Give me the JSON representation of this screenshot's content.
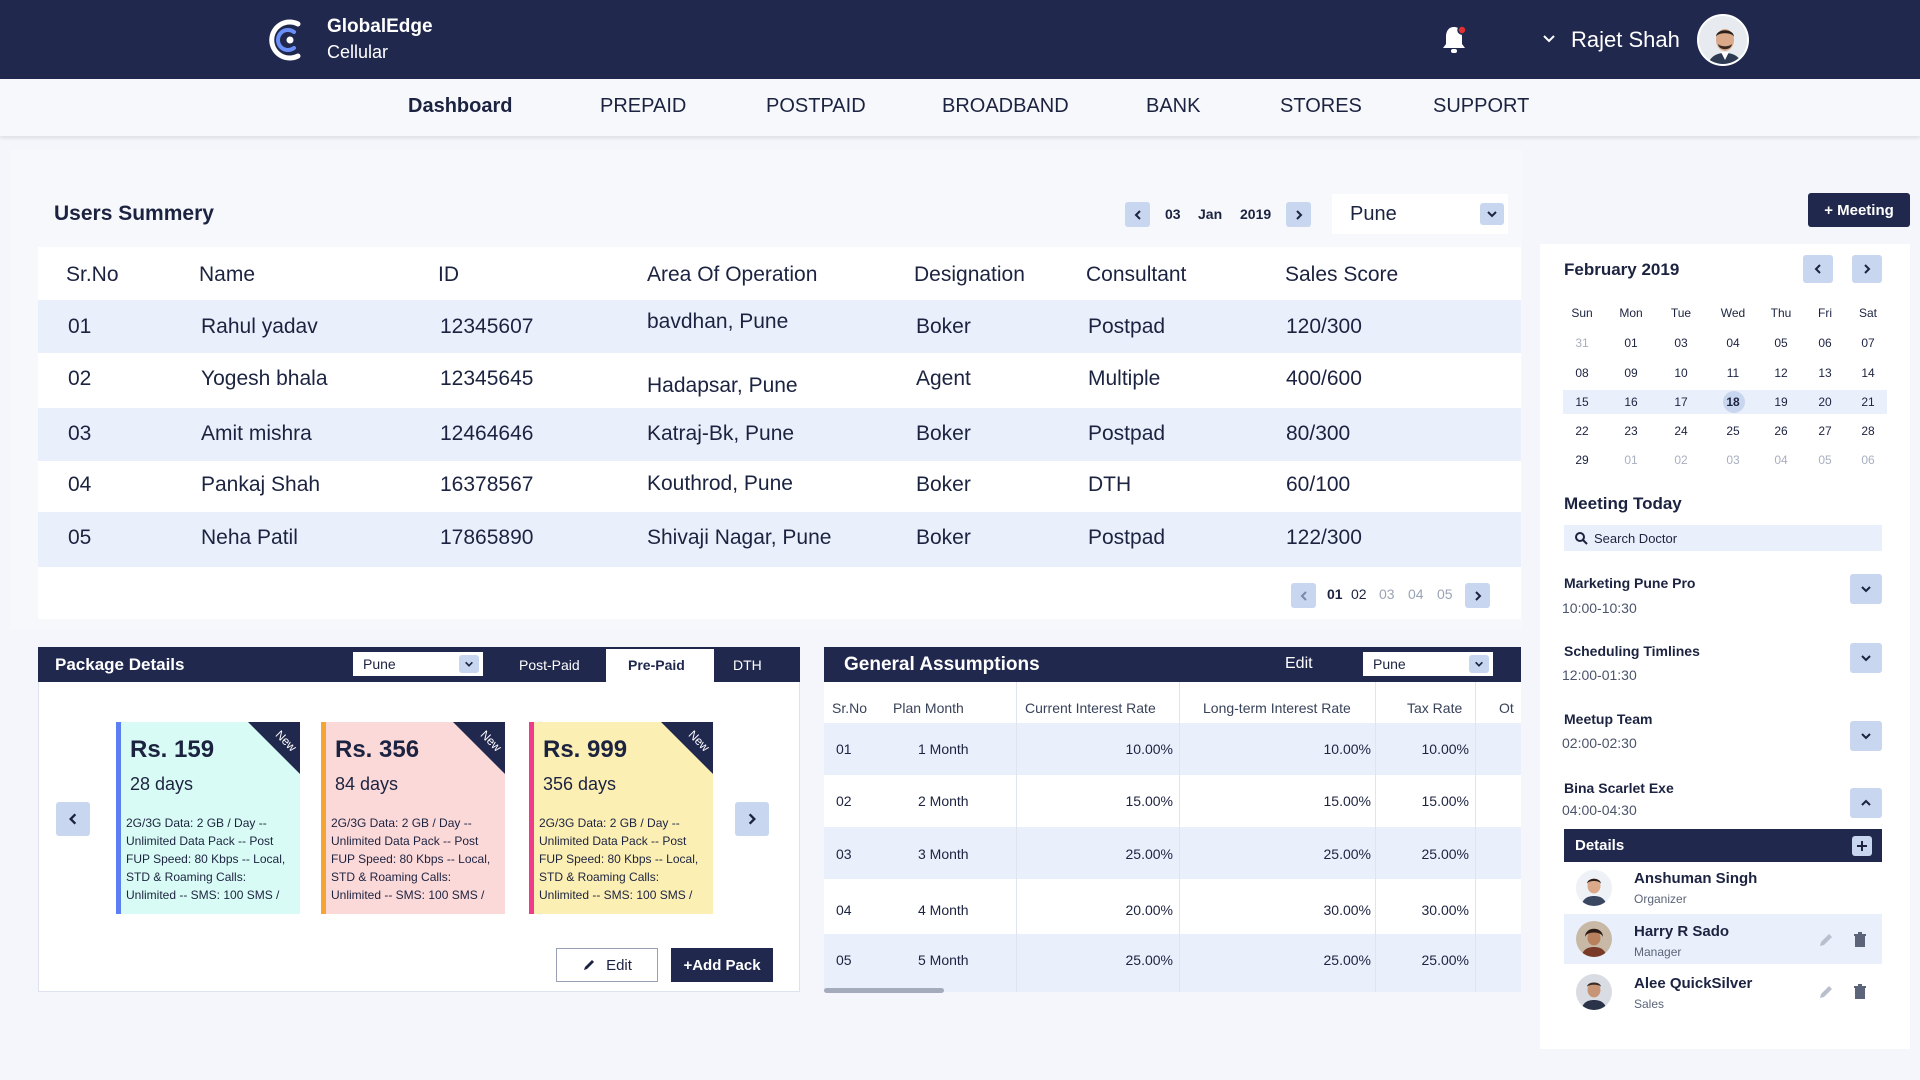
{
  "brand": {
    "name": "GlobalEdge",
    "sub": "Cellular"
  },
  "header": {
    "user_name": "Rajet Shah"
  },
  "nav": [
    "Dashboard",
    "PREPAID",
    "POSTPAID",
    "BROADBAND",
    "BANK",
    "STORES",
    "SUPPORT"
  ],
  "summary": {
    "title": "Users Summery",
    "date": {
      "day": "03",
      "month": "Jan",
      "year": "2019"
    },
    "city": "Pune",
    "columns": [
      "Sr.No",
      "Name",
      "ID",
      "Area Of Operation",
      "Designation",
      "Consultant",
      "Sales Score"
    ],
    "rows": [
      [
        "01",
        "Rahul yadav",
        "12345607",
        "bavdhan, Pune",
        "Boker",
        "Postpad",
        "120/300"
      ],
      [
        "02",
        "Yogesh bhala",
        "12345645",
        "Hadapsar, Pune",
        "Agent",
        "Multiple",
        "400/600"
      ],
      [
        "03",
        "Amit mishra",
        "12464646",
        "Katraj-Bk, Pune",
        "Boker",
        "Postpad",
        "80/300"
      ],
      [
        "04",
        "Pankaj Shah",
        "16378567",
        "Kouthrod, Pune",
        "Boker",
        "DTH",
        "60/100"
      ],
      [
        "05",
        "Neha Patil",
        "17865890",
        "Shivaji Nagar, Pune",
        "Boker",
        "Postpad",
        "122/300"
      ]
    ],
    "pages": [
      "01",
      "02",
      "03",
      "04",
      "05"
    ],
    "current_page": "01"
  },
  "packages": {
    "title": "Package Details",
    "city": "Pune",
    "tabs": [
      "Post-Paid",
      "Pre-Paid",
      "DTH"
    ],
    "active_tab": "Pre-Paid",
    "ribbon": "New",
    "cards": [
      {
        "price": "Rs. 159",
        "days": "28 days",
        "desc": "2G/3G Data: 2 GB / Day -- Unlimited Data Pack -- Post FUP Speed: 80 Kbps -- Local, STD & Roaming Calls: Unlimited -- SMS: 100 SMS /",
        "bg": "#d9fbf5",
        "stripe": "#5b7ff0"
      },
      {
        "price": "Rs. 356",
        "days": "84 days",
        "desc": "2G/3G Data: 2 GB / Day -- Unlimited Data Pack -- Post FUP Speed: 80 Kbps -- Local, STD & Roaming Calls: Unlimited -- SMS: 100 SMS /",
        "bg": "#fcd9d9",
        "stripe": "#f4a534"
      },
      {
        "price": "Rs. 999",
        "days": "356 days",
        "desc": "2G/3G Data: 2 GB / Day -- Unlimited Data Pack -- Post FUP Speed: 80 Kbps -- Local, STD & Roaming Calls: Unlimited -- SMS: 100 SMS /",
        "bg": "#fcefb4",
        "stripe": "#ef3b8a"
      }
    ],
    "edit_label": "Edit",
    "add_label": "+Add Pack"
  },
  "assumptions": {
    "title": "General Assumptions",
    "edit_label": "Edit",
    "city": "Pune",
    "columns": [
      "Sr.No",
      "Plan Month",
      "Current Interest Rate",
      "Long-term Interest Rate",
      "Tax Rate",
      "Ot"
    ],
    "rows": [
      [
        "01",
        "1 Month",
        "10.00%",
        "10.00%",
        "10.00%"
      ],
      [
        "02",
        "2 Month",
        "15.00%",
        "15.00%",
        "15.00%"
      ],
      [
        "03",
        "3 Month",
        "25.00%",
        "25.00%",
        "25.00%"
      ],
      [
        "04",
        "4 Month",
        "20.00%",
        "30.00%",
        "30.00%"
      ],
      [
        "05",
        "5 Month",
        "25.00%",
        "25.00%",
        "25.00%"
      ]
    ]
  },
  "sidebar": {
    "meeting_button": "+ Meeting",
    "calendar": {
      "title": "February 2019",
      "weekdays": [
        "Sun",
        "Mon",
        "Tue",
        "Wed",
        "Thu",
        "Fri",
        "Sat"
      ],
      "weeks": [
        [
          "31",
          "01",
          "03",
          "04",
          "05",
          "06",
          "07"
        ],
        [
          "08",
          "09",
          "10",
          "11",
          "12",
          "13",
          "14"
        ],
        [
          "15",
          "16",
          "17",
          "18",
          "19",
          "20",
          "21"
        ],
        [
          "22",
          "23",
          "24",
          "25",
          "26",
          "27",
          "28"
        ],
        [
          "29",
          "01",
          "02",
          "03",
          "04",
          "05",
          "06"
        ]
      ],
      "selected": "18"
    },
    "meeting_today": "Meeting Today",
    "search_placeholder": "Search Doctor",
    "meetings": [
      {
        "title": "Marketing Pune Pro",
        "time": "10:00-10:30"
      },
      {
        "title": "Scheduling Timlines",
        "time": "12:00-01:30"
      },
      {
        "title": "Meetup Team",
        "time": "02:00-02:30"
      },
      {
        "title": "Bina Scarlet Exe",
        "time": "04:00-04:30"
      }
    ],
    "details_label": "Details",
    "people": [
      {
        "name": "Anshuman Singh",
        "role": "Organizer"
      },
      {
        "name": "Harry R Sado",
        "role": "Manager"
      },
      {
        "name": "Alee QuickSilver",
        "role": "Sales"
      }
    ]
  }
}
